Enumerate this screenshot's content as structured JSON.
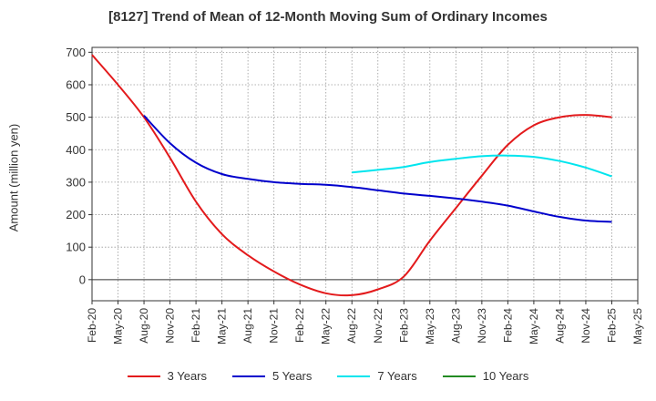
{
  "chart_data": {
    "type": "line",
    "title": "[8127]  Trend of Mean of 12-Month Moving Sum of Ordinary Incomes",
    "xlabel": "",
    "ylabel": "Amount (million yen)",
    "x": [
      "Feb-20",
      "May-20",
      "Aug-20",
      "Nov-20",
      "Feb-21",
      "May-21",
      "Aug-21",
      "Nov-21",
      "Feb-22",
      "May-22",
      "Aug-22",
      "Nov-22",
      "Feb-23",
      "May-23",
      "Aug-23",
      "Nov-23",
      "Feb-24",
      "May-24",
      "Aug-24",
      "Nov-24",
      "Feb-25",
      "May-25"
    ],
    "ylim": [
      -65,
      715
    ],
    "yticks": [
      0,
      100,
      200,
      300,
      400,
      500,
      600,
      700
    ],
    "grid": true,
    "legend_position": "bottom",
    "series": [
      {
        "name": "3 Years",
        "color": "#e31a1c",
        "values": [
          692,
          600,
          500,
          375,
          240,
          140,
          75,
          25,
          -15,
          -42,
          -48,
          -30,
          10,
          120,
          220,
          320,
          415,
          475,
          500,
          507,
          500,
          null
        ]
      },
      {
        "name": "5 Years",
        "color": "#0000cc",
        "values": [
          null,
          null,
          505,
          420,
          360,
          325,
          310,
          300,
          295,
          292,
          285,
          275,
          265,
          258,
          250,
          240,
          228,
          210,
          193,
          182,
          178,
          null
        ]
      },
      {
        "name": "7 Years",
        "color": "#00e5ee",
        "values": [
          null,
          null,
          null,
          null,
          null,
          null,
          null,
          null,
          null,
          null,
          330,
          338,
          347,
          362,
          372,
          380,
          382,
          378,
          365,
          345,
          318,
          null
        ]
      },
      {
        "name": "10 Years",
        "color": "#228b22",
        "values": [
          null,
          null,
          null,
          null,
          null,
          null,
          null,
          null,
          null,
          null,
          null,
          null,
          null,
          null,
          null,
          null,
          null,
          null,
          null,
          null,
          null,
          null
        ]
      }
    ]
  }
}
